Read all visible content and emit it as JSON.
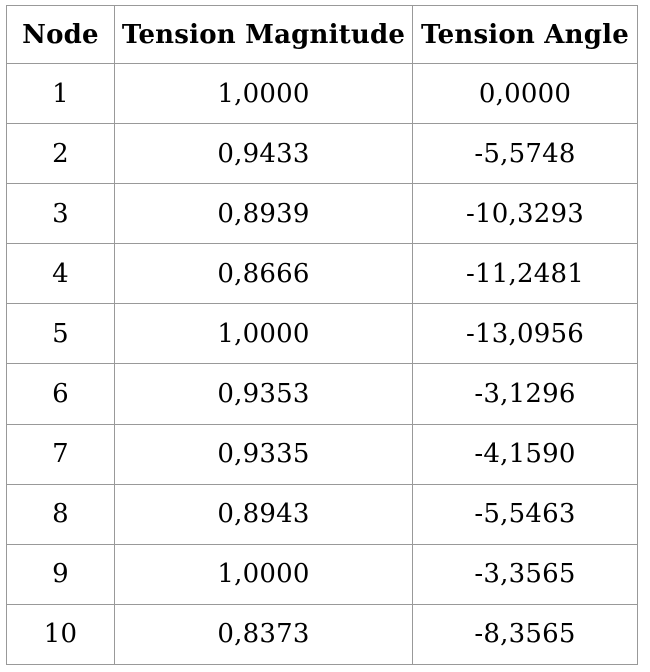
{
  "table": {
    "name": "tension-table",
    "border_color": "#999999",
    "text_color": "#000000",
    "columns": [
      {
        "label": "Node"
      },
      {
        "label": "Tension Magnitude"
      },
      {
        "label": "Tension Angle"
      }
    ],
    "rows": [
      {
        "node": "1",
        "magnitude": "1,0000",
        "angle": "0,0000"
      },
      {
        "node": "2",
        "magnitude": "0,9433",
        "angle": "-5,5748"
      },
      {
        "node": "3",
        "magnitude": "0,8939",
        "angle": "-10,3293"
      },
      {
        "node": "4",
        "magnitude": "0,8666",
        "angle": "-11,2481"
      },
      {
        "node": "5",
        "magnitude": "1,0000",
        "angle": "-13,0956"
      },
      {
        "node": "6",
        "magnitude": "0,9353",
        "angle": "-3,1296"
      },
      {
        "node": "7",
        "magnitude": "0,9335",
        "angle": "-4,1590"
      },
      {
        "node": "8",
        "magnitude": "0,8943",
        "angle": "-5,5463"
      },
      {
        "node": "9",
        "magnitude": "1,0000",
        "angle": "-3,3565"
      },
      {
        "node": "10",
        "magnitude": "0,8373",
        "angle": "-8,3565"
      }
    ]
  }
}
